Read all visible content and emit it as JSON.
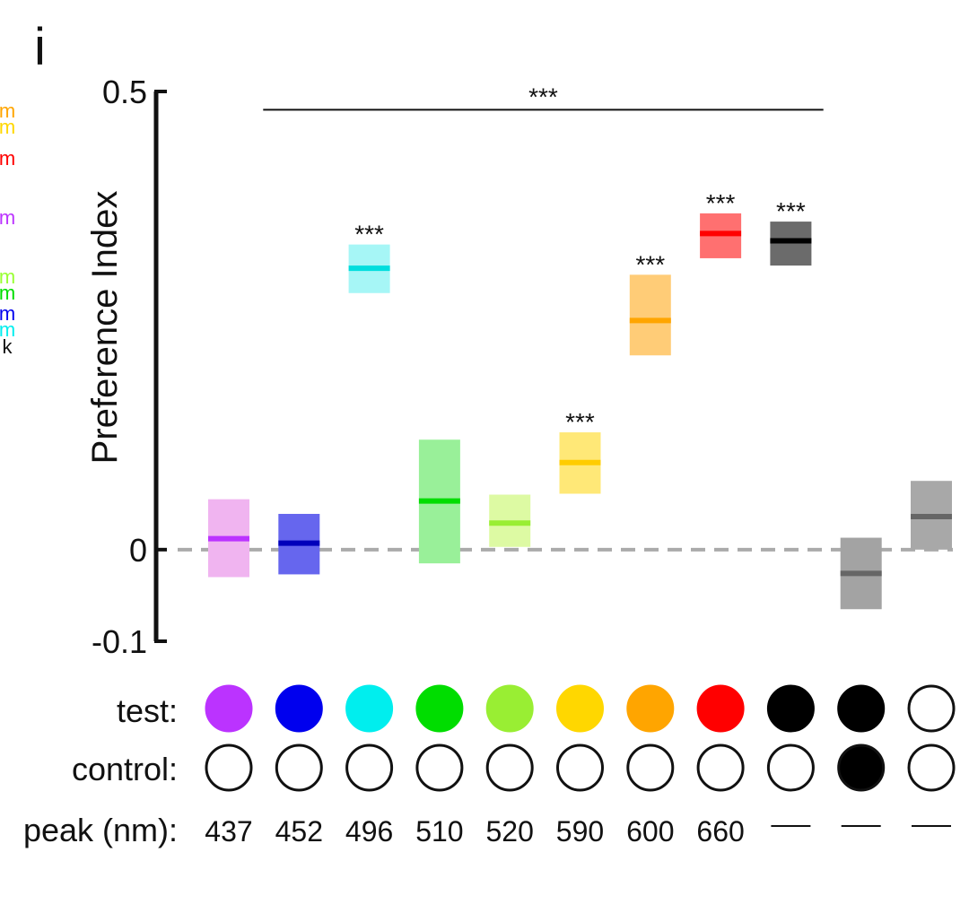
{
  "panel_label": "i",
  "edge_fragments": [
    {
      "text": "m",
      "color": "#ffa500"
    },
    {
      "text": "m",
      "color": "#ffd700"
    },
    {
      "text": "m",
      "color": "#ff0000"
    },
    {
      "text": "m",
      "color": "#bb33ff"
    },
    {
      "text": "m",
      "color": "#99ff33"
    },
    {
      "text": "m",
      "color": "#00dd00"
    },
    {
      "text": "m",
      "color": "#0000ee"
    },
    {
      "text": "m",
      "color": "#00eeee"
    },
    {
      "text": "k",
      "color": "#111111"
    }
  ],
  "row_labels": {
    "test": "test:",
    "control": "control:",
    "peak": "peak (nm):"
  },
  "chart_data": {
    "type": "box",
    "ylabel": "Preference Index",
    "ylim": [
      -0.1,
      0.5
    ],
    "yticks": [
      {
        "value": 0.5,
        "label": "0.5"
      },
      {
        "value": 0,
        "label": "0"
      },
      {
        "value": -0.1,
        "label": "-0.1"
      }
    ],
    "reference_line": 0,
    "overall_significance": {
      "label": "***",
      "from_index": 1,
      "to_index": 9,
      "y": 0.48
    },
    "groups": [
      {
        "peak": "437",
        "test": "#bb33ff",
        "control": "none",
        "median": 0.012,
        "q1": -0.03,
        "q3": 0.055,
        "fill": "#f0b4f0",
        "line": "#bb33ff",
        "sig": ""
      },
      {
        "peak": "452",
        "test": "#0000ee",
        "control": "none",
        "median": 0.007,
        "q1": -0.027,
        "q3": 0.039,
        "fill": "#6666ee",
        "line": "#0000bb",
        "sig": ""
      },
      {
        "peak": "496",
        "test": "#00eeee",
        "control": "none",
        "median": 0.307,
        "q1": 0.28,
        "q3": 0.333,
        "fill": "#a6f6f6",
        "line": "#00dddd",
        "sig": "***"
      },
      {
        "peak": "510",
        "test": "#00dd00",
        "control": "none",
        "median": 0.053,
        "q1": -0.015,
        "q3": 0.12,
        "fill": "#99f099",
        "line": "#00dd00",
        "sig": ""
      },
      {
        "peak": "520",
        "test": "#99ee33",
        "control": "none",
        "median": 0.029,
        "q1": 0.003,
        "q3": 0.06,
        "fill": "#ddfaa3",
        "line": "#99ee33",
        "sig": ""
      },
      {
        "peak": "590",
        "test": "#ffd700",
        "control": "none",
        "median": 0.095,
        "q1": 0.061,
        "q3": 0.128,
        "fill": "#ffe877",
        "line": "#ffcc00",
        "sig": "***"
      },
      {
        "peak": "600",
        "test": "#ffa500",
        "control": "none",
        "median": 0.25,
        "q1": 0.212,
        "q3": 0.3,
        "fill": "#ffcc77",
        "line": "#ffa500",
        "sig": "***"
      },
      {
        "peak": "660",
        "test": "#ff0000",
        "control": "none",
        "median": 0.345,
        "q1": 0.318,
        "q3": 0.367,
        "fill": "#ff7070",
        "line": "#ff0000",
        "sig": "***"
      },
      {
        "peak": "—",
        "test": "#000000",
        "control": "none",
        "median": 0.337,
        "q1": 0.31,
        "q3": 0.358,
        "fill": "#6b6b6b",
        "line": "#000000",
        "sig": "***"
      },
      {
        "peak": "—",
        "test": "#000000",
        "control": "#000000",
        "median": -0.026,
        "q1": -0.065,
        "q3": 0.013,
        "fill": "#a3a3a3",
        "line": "#666666",
        "sig": ""
      },
      {
        "peak": "—",
        "test": "none",
        "control": "none",
        "median": 0.036,
        "q1": 0.0,
        "q3": 0.075,
        "fill": "#a8a8a8",
        "line": "#666666",
        "sig": ""
      }
    ]
  }
}
